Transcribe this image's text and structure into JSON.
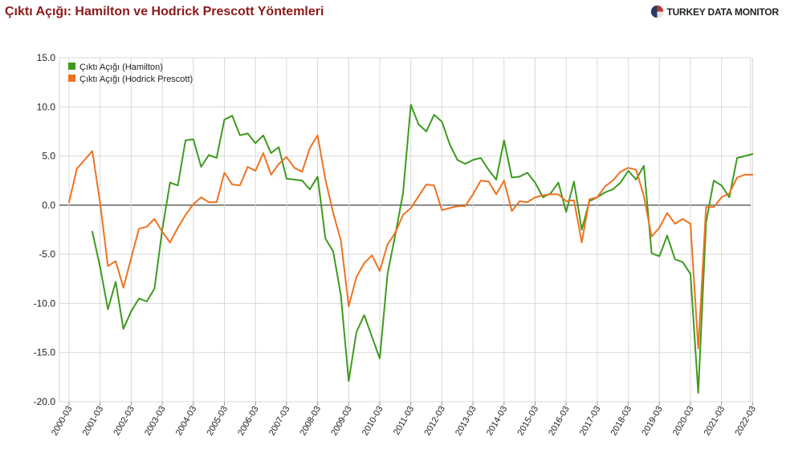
{
  "header": {
    "title": "Çıktı Açığı: Hamilton ve Hodrick Prescott Yöntemleri",
    "brand": "TURKEY DATA MONITOR"
  },
  "colors": {
    "title": "#8b1a1a",
    "hamilton": "#3f9a1f",
    "hodrick_prescott": "#ee7320",
    "grid": "#d8d8d8",
    "zero_line": "#444444"
  },
  "chart_data": {
    "type": "line",
    "title": "Çıktı Açığı: Hamilton ve Hodrick Prescott Yöntemleri",
    "xlabel": "",
    "ylabel": "",
    "ylim": [
      -20,
      15
    ],
    "yticks": [
      "15.0",
      "10.0",
      "5.0",
      "0.0",
      "-5.0",
      "-10.0",
      "-15.0",
      "-20.0"
    ],
    "x_tick_labels": [
      "2000-03",
      "2001-03",
      "2002-03",
      "2003-03",
      "2004-03",
      "2005-03",
      "2006-03",
      "2007-03",
      "2008-03",
      "2009-03",
      "2010-03",
      "2011-03",
      "2012-03",
      "2013-03",
      "2014-03",
      "2015-03",
      "2016-03",
      "2017-03",
      "2018-03",
      "2019-03",
      "2020-03",
      "2021-03",
      "2022-03"
    ],
    "grid": true,
    "legend_position": "top-left",
    "x_start": "2000-03",
    "x_frequency": "quarterly",
    "series": [
      {
        "name": "Çıktı Açığı (Hamilton)",
        "values": [
          null,
          null,
          null,
          -2.7,
          -6.3,
          -10.6,
          -7.8,
          -12.6,
          -10.8,
          -9.5,
          -9.8,
          -8.5,
          -2.5,
          2.3,
          2.0,
          6.6,
          6.7,
          3.9,
          5.1,
          4.8,
          8.7,
          9.1,
          7.1,
          7.3,
          6.3,
          7.1,
          5.3,
          5.9,
          2.7,
          2.6,
          2.5,
          1.6,
          2.9,
          -3.4,
          -4.7,
          -9.2,
          -17.9,
          -12.9,
          -11.2,
          -13.4,
          -15.6,
          -7.0,
          -3.0,
          1.2,
          10.2,
          8.2,
          7.5,
          9.2,
          8.5,
          6.2,
          4.6,
          4.2,
          4.6,
          4.8,
          3.6,
          2.6,
          6.6,
          2.8,
          2.9,
          3.3,
          2.3,
          0.8,
          1.2,
          2.3,
          -0.7,
          2.4,
          -2.5,
          0.4,
          0.8,
          1.3,
          1.6,
          2.3,
          3.5,
          2.6,
          4.0,
          -4.9,
          -5.2,
          -3.1,
          -5.5,
          -5.8,
          -7.0,
          -19.1,
          -1.8,
          2.5,
          2.0,
          0.8,
          4.8,
          5.0,
          5.2
        ]
      },
      {
        "name": "Çıktı Açığı (Hodrick Prescott)",
        "values": [
          0.3,
          3.7,
          4.6,
          5.5,
          0.2,
          -6.2,
          -5.7,
          -8.4,
          -5.4,
          -2.4,
          -2.2,
          -1.4,
          -2.7,
          -3.8,
          -2.3,
          -1.0,
          0.1,
          0.8,
          0.3,
          0.3,
          3.3,
          2.1,
          2.0,
          3.9,
          3.5,
          5.3,
          3.1,
          4.2,
          4.9,
          3.8,
          3.4,
          5.8,
          7.1,
          2.6,
          -0.8,
          -3.6,
          -10.3,
          -7.3,
          -5.9,
          -5.1,
          -6.7,
          -4.0,
          -2.8,
          -1.0,
          -0.3,
          0.9,
          2.1,
          2.0,
          -0.5,
          -0.3,
          -0.1,
          -0.1,
          1.1,
          2.5,
          2.4,
          1.1,
          2.5,
          -0.6,
          0.4,
          0.3,
          0.8,
          1.0,
          1.1,
          1.1,
          0.4,
          0.5,
          -3.8,
          0.6,
          0.8,
          1.9,
          2.5,
          3.4,
          3.8,
          3.6,
          0.9,
          -3.2,
          -2.3,
          -0.8,
          -1.9,
          -1.4,
          -1.9,
          -14.6,
          -0.2,
          -0.2,
          0.8,
          1.2,
          2.8,
          3.1,
          3.1
        ]
      }
    ]
  }
}
